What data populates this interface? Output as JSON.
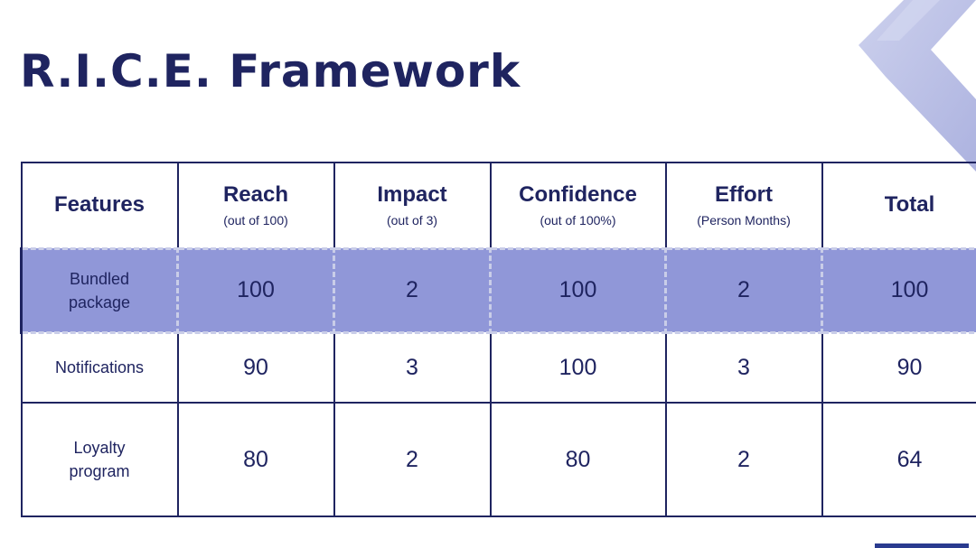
{
  "title": "R.I.C.E. Framework",
  "colors": {
    "primary": "#1f2460",
    "highlight": "#9097d8",
    "dash": "#c9cde8",
    "decoration": "#aeb4de",
    "corner_bar": "#2a3b8f"
  },
  "table": {
    "headers": [
      {
        "label": "Features",
        "sub": ""
      },
      {
        "label": "Reach",
        "sub": "(out of 100)"
      },
      {
        "label": "Impact",
        "sub": "(out of 3)"
      },
      {
        "label": "Confidence",
        "sub": "(out of 100%)"
      },
      {
        "label": "Effort",
        "sub": "(Person Months)"
      },
      {
        "label": "Total",
        "sub": ""
      }
    ],
    "rows": [
      {
        "feature_lines": [
          "Bundled",
          "package"
        ],
        "reach": "100",
        "impact": "2",
        "confidence": "100",
        "effort": "2",
        "total": "100",
        "highlighted": true
      },
      {
        "feature_lines": [
          "Notifications"
        ],
        "reach": "90",
        "impact": "3",
        "confidence": "100",
        "effort": "3",
        "total": "90",
        "highlighted": false
      },
      {
        "feature_lines": [
          "Loyalty",
          "program"
        ],
        "reach": "80",
        "impact": "2",
        "confidence": "80",
        "effort": "2",
        "total": "64",
        "highlighted": false
      }
    ]
  }
}
